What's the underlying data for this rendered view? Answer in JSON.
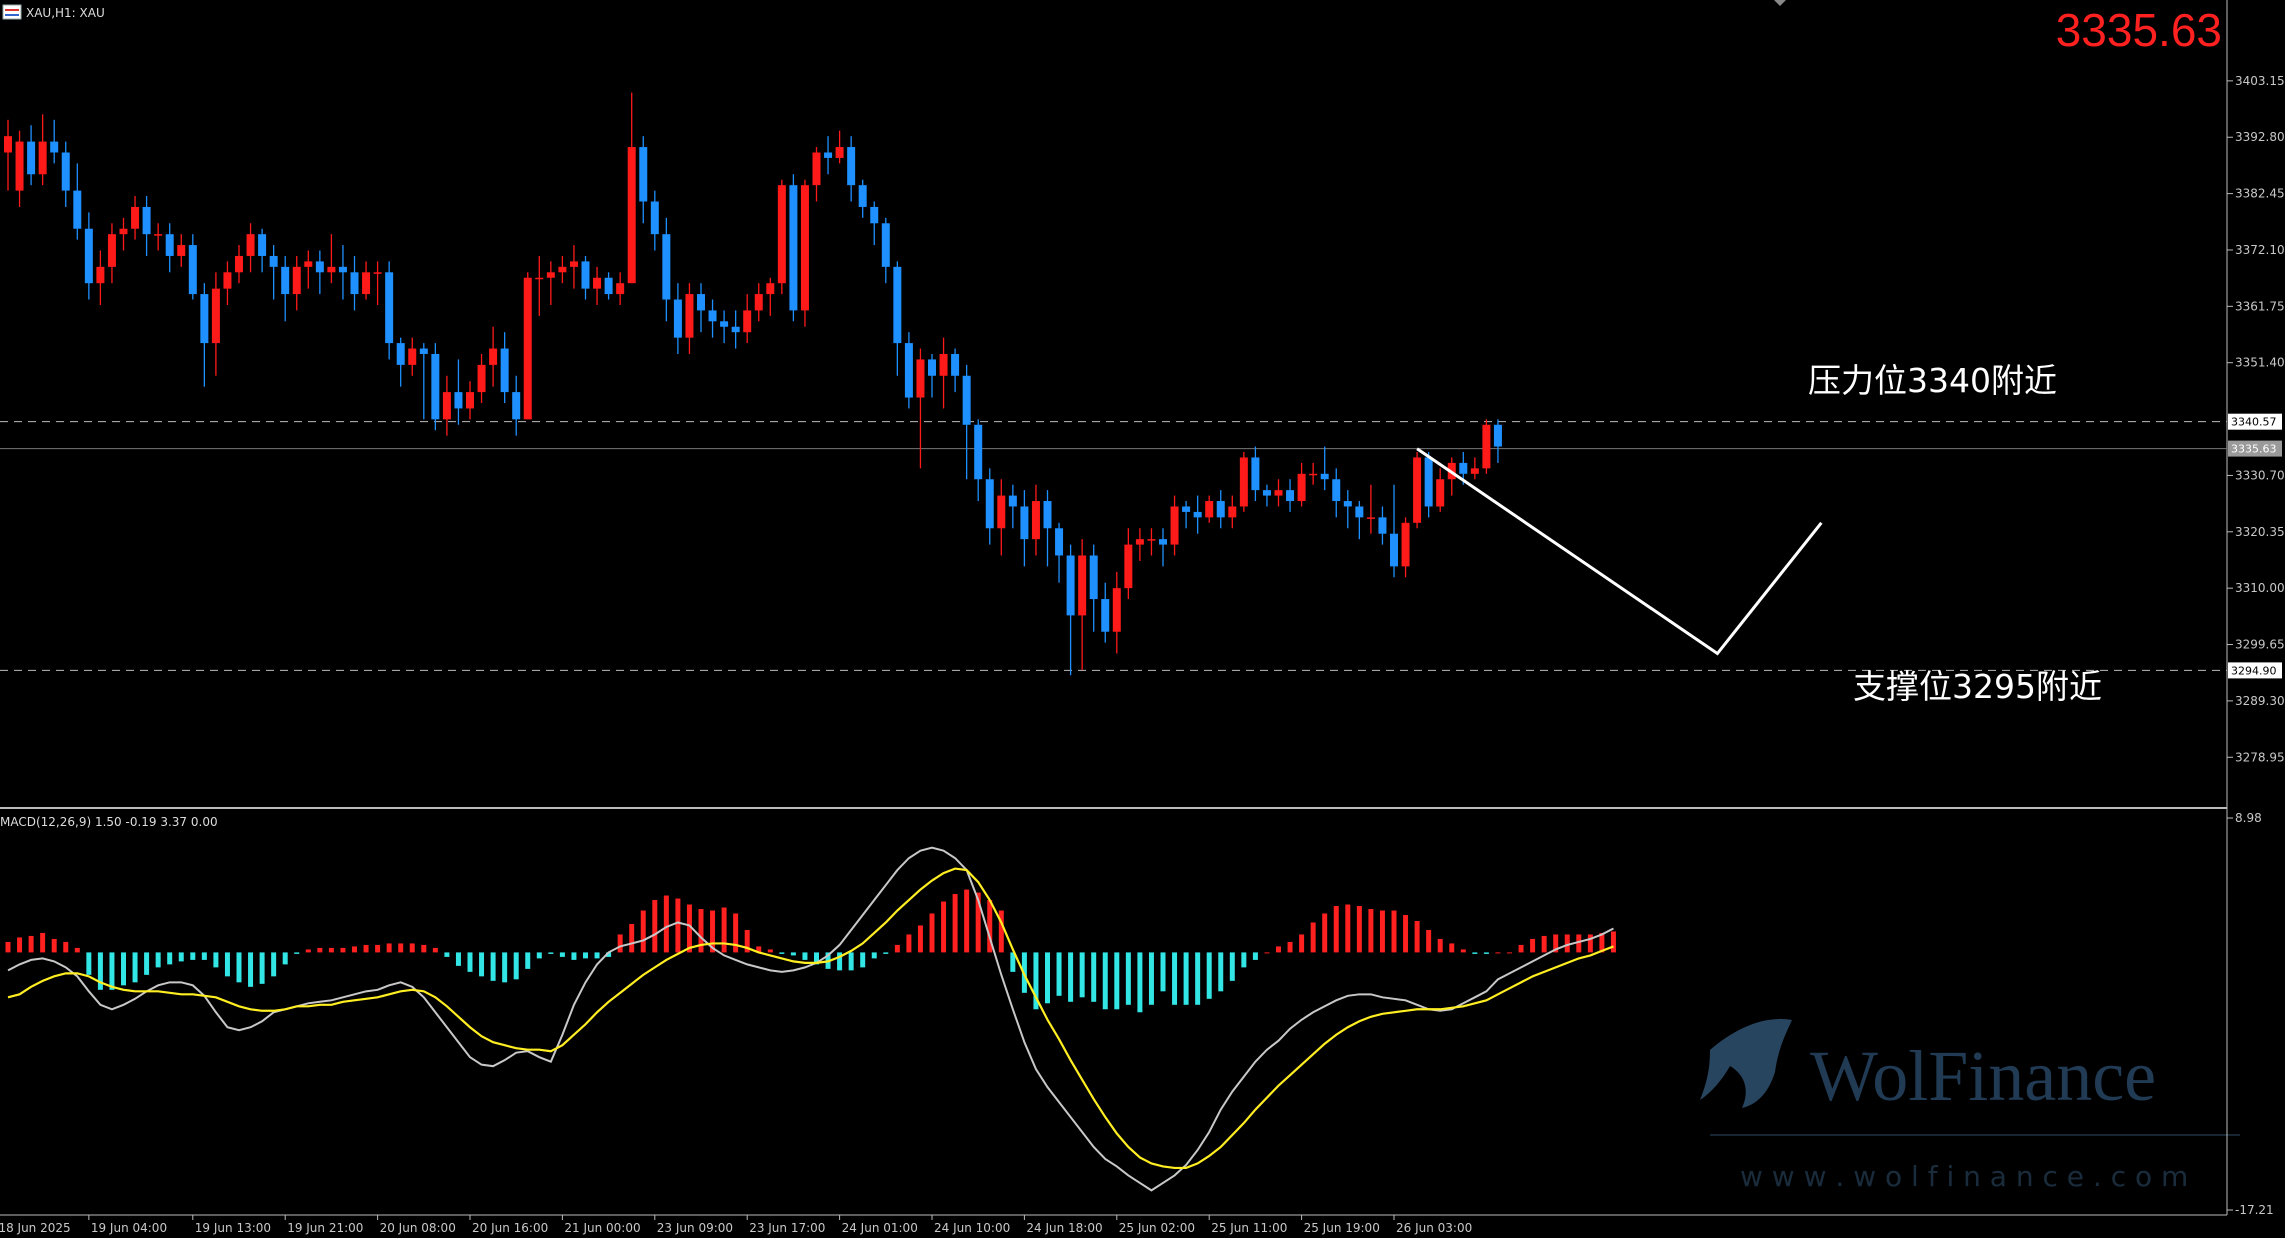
{
  "header": {
    "symbol_label": "XAU,H1: XAU",
    "current_price": "3335.63"
  },
  "colors": {
    "background": "#000000",
    "bull": "#ff1a1a",
    "bear": "#1e90ff",
    "macd_pos": "#ff2020",
    "macd_neg": "#33e6e6",
    "macd_line": "#c8c8c8",
    "signal_line": "#ffee22",
    "price_big": "#ff2020",
    "grid_text": "#c8c8c8"
  },
  "chart_data": {
    "type": "candlestick",
    "ylim": [
      3270.0,
      3418.0
    ],
    "y_ticks": [
      3403.15,
      3392.8,
      3382.45,
      3372.1,
      3361.75,
      3351.4,
      3330.7,
      3320.35,
      3310.0,
      3299.65,
      3289.3,
      3278.95
    ],
    "y_tick_labels": [
      "3403.15",
      "3392.80",
      "3382.45",
      "3372.10",
      "3361.75",
      "3351.40",
      "3330.70",
      "3320.35",
      "3310.00",
      "3299.65",
      "3289.30",
      "3278.95"
    ],
    "x_ticks": [
      {
        "index": -1,
        "label": "18 Jun 2025"
      },
      {
        "index": 7,
        "label": "19 Jun 04:00"
      },
      {
        "index": 16,
        "label": "19 Jun 13:00"
      },
      {
        "index": 24,
        "label": "19 Jun 21:00"
      },
      {
        "index": 32,
        "label": "20 Jun 08:00"
      },
      {
        "index": 40,
        "label": "20 Jun 16:00"
      },
      {
        "index": 48,
        "label": "21 Jun 00:00"
      },
      {
        "index": 56,
        "label": "23 Jun 09:00"
      },
      {
        "index": 64,
        "label": "23 Jun 17:00"
      },
      {
        "index": 72,
        "label": "24 Jun 01:00"
      },
      {
        "index": 80,
        "label": "24 Jun 10:00"
      },
      {
        "index": 88,
        "label": "24 Jun 18:00"
      },
      {
        "index": 96,
        "label": "25 Jun 02:00"
      },
      {
        "index": 104,
        "label": "25 Jun 11:00"
      },
      {
        "index": 112,
        "label": "25 Jun 19:00"
      },
      {
        "index": 120,
        "label": "26 Jun 03:00"
      }
    ],
    "candles": [
      [
        3390,
        3393,
        3383,
        3396
      ],
      [
        3383,
        3392,
        3380,
        3394
      ],
      [
        3392,
        3386,
        3384,
        3395
      ],
      [
        3386,
        3392,
        3384,
        3397
      ],
      [
        3392,
        3390,
        3388,
        3396
      ],
      [
        3390,
        3383,
        3380,
        3392
      ],
      [
        3383,
        3376,
        3374,
        3388
      ],
      [
        3376,
        3366,
        3363,
        3379
      ],
      [
        3366,
        3369,
        3362,
        3372
      ],
      [
        3369,
        3375,
        3366,
        3377
      ],
      [
        3375,
        3376,
        3372,
        3378
      ],
      [
        3376,
        3380,
        3374,
        3382
      ],
      [
        3380,
        3375,
        3371,
        3382
      ],
      [
        3375,
        3375,
        3372,
        3377
      ],
      [
        3375,
        3371,
        3368,
        3377
      ],
      [
        3371,
        3373,
        3369,
        3375
      ],
      [
        3373,
        3364,
        3363,
        3375
      ],
      [
        3364,
        3355,
        3347,
        3366
      ],
      [
        3355,
        3365,
        3349,
        3368
      ],
      [
        3365,
        3368,
        3362,
        3370
      ],
      [
        3368,
        3371,
        3366,
        3373
      ],
      [
        3371,
        3375,
        3368,
        3377
      ],
      [
        3375,
        3371,
        3368,
        3376
      ],
      [
        3371,
        3369,
        3363,
        3373
      ],
      [
        3369,
        3364,
        3359,
        3371
      ],
      [
        3364,
        3369,
        3361,
        3371
      ],
      [
        3369,
        3370,
        3365,
        3372
      ],
      [
        3370,
        3368,
        3364,
        3372
      ],
      [
        3368,
        3369,
        3366,
        3375
      ],
      [
        3369,
        3368,
        3363,
        3373
      ],
      [
        3368,
        3364,
        3361,
        3371
      ],
      [
        3364,
        3368,
        3363,
        3370
      ],
      [
        3368,
        3368,
        3362,
        3370
      ],
      [
        3368,
        3355,
        3352,
        3370
      ],
      [
        3355,
        3351,
        3347,
        3356
      ],
      [
        3351,
        3354,
        3349,
        3356
      ],
      [
        3354,
        3353,
        3341,
        3355
      ],
      [
        3353,
        3341,
        3339,
        3355
      ],
      [
        3341,
        3346,
        3338,
        3349
      ],
      [
        3346,
        3343,
        3340,
        3352
      ],
      [
        3343,
        3346,
        3341,
        3348
      ],
      [
        3346,
        3351,
        3344,
        3353
      ],
      [
        3351,
        3354,
        3347,
        3358
      ],
      [
        3354,
        3346,
        3344,
        3357
      ],
      [
        3346,
        3341,
        3338,
        3349
      ],
      [
        3341,
        3367,
        3341,
        3368
      ],
      [
        3367,
        3367,
        3360,
        3371
      ],
      [
        3367,
        3368,
        3362,
        3370
      ],
      [
        3368,
        3369,
        3366,
        3371
      ],
      [
        3369,
        3370,
        3365,
        3373
      ],
      [
        3370,
        3365,
        3363,
        3371
      ],
      [
        3365,
        3367,
        3362,
        3369
      ],
      [
        3367,
        3364,
        3363,
        3368
      ],
      [
        3364,
        3366,
        3362,
        3368
      ],
      [
        3366,
        3391,
        3366,
        3401
      ],
      [
        3391,
        3381,
        3377,
        3393
      ],
      [
        3381,
        3375,
        3372,
        3383
      ],
      [
        3375,
        3363,
        3359,
        3378
      ],
      [
        3363,
        3356,
        3353,
        3366
      ],
      [
        3356,
        3364,
        3353,
        3366
      ],
      [
        3364,
        3361,
        3357,
        3366
      ],
      [
        3361,
        3359,
        3356,
        3363
      ],
      [
        3359,
        3358,
        3355,
        3361
      ],
      [
        3358,
        3357,
        3354,
        3361
      ],
      [
        3357,
        3361,
        3355,
        3364
      ],
      [
        3361,
        3364,
        3359,
        3366
      ],
      [
        3364,
        3366,
        3360,
        3367
      ],
      [
        3366,
        3384,
        3364,
        3385
      ],
      [
        3384,
        3361,
        3359,
        3386
      ],
      [
        3361,
        3384,
        3358,
        3385
      ],
      [
        3384,
        3390,
        3381,
        3391
      ],
      [
        3390,
        3389,
        3386,
        3393
      ],
      [
        3389,
        3391,
        3388,
        3394
      ],
      [
        3391,
        3384,
        3381,
        3393
      ],
      [
        3384,
        3380,
        3378,
        3385
      ],
      [
        3380,
        3377,
        3373,
        3381
      ],
      [
        3377,
        3369,
        3366,
        3378
      ],
      [
        3369,
        3355,
        3349,
        3370
      ],
      [
        3355,
        3345,
        3343,
        3357
      ],
      [
        3345,
        3352,
        3332,
        3354
      ],
      [
        3352,
        3349,
        3345,
        3353
      ],
      [
        3349,
        3353,
        3343,
        3356
      ],
      [
        3353,
        3349,
        3346,
        3354
      ],
      [
        3349,
        3340,
        3330,
        3351
      ],
      [
        3340,
        3330,
        3326,
        3341
      ],
      [
        3330,
        3321,
        3318,
        3332
      ],
      [
        3321,
        3327,
        3316,
        3330
      ],
      [
        3327,
        3325,
        3321,
        3329
      ],
      [
        3325,
        3319,
        3314,
        3328
      ],
      [
        3319,
        3326,
        3316,
        3329
      ],
      [
        3326,
        3321,
        3314,
        3328
      ],
      [
        3321,
        3316,
        3311,
        3322
      ],
      [
        3316,
        3305,
        3294,
        3318
      ],
      [
        3305,
        3316,
        3295,
        3319
      ],
      [
        3316,
        3308,
        3302,
        3318
      ],
      [
        3308,
        3302,
        3300,
        3311
      ],
      [
        3302,
        3310,
        3298,
        3313
      ],
      [
        3310,
        3318,
        3308,
        3321
      ],
      [
        3318,
        3319,
        3315,
        3321
      ],
      [
        3319,
        3319,
        3316,
        3321
      ],
      [
        3319,
        3318,
        3314,
        3321
      ],
      [
        3318,
        3325,
        3316,
        3327
      ],
      [
        3325,
        3324,
        3321,
        3326
      ],
      [
        3324,
        3323,
        3320,
        3327
      ],
      [
        3323,
        3326,
        3322,
        3327
      ],
      [
        3326,
        3323,
        3321,
        3328
      ],
      [
        3323,
        3325,
        3321,
        3327
      ],
      [
        3325,
        3334,
        3324,
        3335
      ],
      [
        3334,
        3328,
        3326,
        3336
      ],
      [
        3328,
        3327,
        3325,
        3329
      ],
      [
        3327,
        3328,
        3325,
        3330
      ],
      [
        3328,
        3326,
        3324,
        3330
      ],
      [
        3326,
        3331,
        3325,
        3333
      ],
      [
        3331,
        3331,
        3329,
        3333
      ],
      [
        3331,
        3330,
        3328,
        3336
      ],
      [
        3330,
        3326,
        3323,
        3332
      ],
      [
        3326,
        3325,
        3321,
        3328
      ],
      [
        3325,
        3323,
        3319,
        3326
      ],
      [
        3323,
        3323,
        3320,
        3329
      ],
      [
        3323,
        3320,
        3318,
        3325
      ],
      [
        3320,
        3314,
        3312,
        3329
      ],
      [
        3314,
        3322,
        3312,
        3323
      ],
      [
        3322,
        3334,
        3321,
        3335
      ],
      [
        3334,
        3325,
        3323,
        3335
      ],
      [
        3325,
        3330,
        3324,
        3332
      ],
      [
        3330,
        3333,
        3327,
        3334
      ],
      [
        3333,
        3331,
        3329,
        3335
      ],
      [
        3331,
        3332,
        3330,
        3334
      ],
      [
        3332,
        3340,
        3331,
        3341
      ],
      [
        3340,
        3336,
        3333,
        3341
      ]
    ],
    "levels": [
      {
        "price": 3340.57,
        "label": "3340.57",
        "style": "dashed"
      },
      {
        "price": 3335.63,
        "label": "3335.63",
        "style": "solid"
      },
      {
        "price": 3294.9,
        "label": "3294.90",
        "style": "dashed"
      }
    ],
    "annotations": {
      "resistance": "压力位3340附近",
      "support": "支撑位3295附近"
    },
    "projection": [
      {
        "index": 122,
        "price": 3335.6
      },
      {
        "index": 148,
        "price": 3298.0
      },
      {
        "index": 157,
        "price": 3322.0
      }
    ],
    "macd": {
      "label": "MACD(12,26,9) 1.50 -0.19 3.37 0.00",
      "ylim": [
        -17.21,
        8.98
      ],
      "y_tick_labels": [
        "8.98",
        "-17.21"
      ],
      "hist": [
        0.7,
        1.0,
        1.1,
        1.3,
        0.9,
        0.7,
        0.3,
        -1.5,
        -2.5,
        -2.5,
        -2.2,
        -2.0,
        -1.5,
        -1.0,
        -0.8,
        -0.6,
        -0.5,
        -0.5,
        -1.0,
        -1.6,
        -2.0,
        -2.3,
        -2.1,
        -1.6,
        -0.8,
        -0.1,
        0.2,
        0.3,
        0.3,
        0.3,
        0.4,
        0.5,
        0.5,
        0.6,
        0.6,
        0.6,
        0.5,
        0.3,
        -0.3,
        -0.9,
        -1.3,
        -1.6,
        -1.9,
        -2.0,
        -1.8,
        -1.1,
        -0.4,
        -0.1,
        -0.3,
        -0.5,
        -0.4,
        -0.4,
        -0.3,
        1.2,
        1.9,
        2.8,
        3.5,
        3.8,
        3.6,
        3.2,
        2.9,
        2.8,
        3.0,
        2.6,
        1.5,
        0.4,
        0.2,
        -0.1,
        -0.2,
        -0.5,
        -0.8,
        -1.1,
        -1.2,
        -1.2,
        -1.0,
        -0.4,
        -0.1,
        0.5,
        1.2,
        1.8,
        2.6,
        3.4,
        3.9,
        4.2,
        4.0,
        3.5,
        2.8,
        -1.3,
        -2.7,
        -3.8,
        -3.4,
        -2.9,
        -3.3,
        -3.0,
        -3.3,
        -3.8,
        -3.8,
        -3.5,
        -4.0,
        -3.5,
        -2.6,
        -3.5,
        -3.5,
        -3.5,
        -3.1,
        -2.6,
        -1.9,
        -1.0,
        -0.5,
        0.0,
        0.4,
        0.7,
        1.2,
        2.0,
        2.6,
        3.1,
        3.2,
        3.1,
        2.9,
        2.8,
        2.8,
        2.5,
        2.1,
        1.5,
        0.9,
        0.6,
        0.2,
        -0.1,
        -0.1,
        0.0,
        0.0,
        0.5,
        0.9,
        1.1,
        1.2,
        1.2,
        1.2,
        1.2,
        1.3,
        1.4
      ],
      "macd_line": [
        -1.2,
        -0.8,
        -0.5,
        -0.4,
        -0.6,
        -1.0,
        -1.6,
        -2.6,
        -3.5,
        -3.8,
        -3.5,
        -3.1,
        -2.6,
        -2.2,
        -2.0,
        -2.0,
        -2.2,
        -2.9,
        -4.0,
        -5.0,
        -5.2,
        -5.0,
        -4.6,
        -4.0,
        -3.8,
        -3.6,
        -3.4,
        -3.3,
        -3.2,
        -3.0,
        -2.8,
        -2.6,
        -2.5,
        -2.2,
        -2.0,
        -2.3,
        -3.0,
        -4.0,
        -5.0,
        -6.0,
        -7.0,
        -7.5,
        -7.6,
        -7.2,
        -6.7,
        -6.6,
        -7.0,
        -7.3,
        -5.5,
        -3.5,
        -2.0,
        -0.8,
        0.0,
        0.4,
        0.6,
        0.8,
        1.2,
        1.7,
        2.0,
        1.8,
        1.0,
        0.3,
        -0.2,
        -0.5,
        -0.8,
        -1.0,
        -1.2,
        -1.3,
        -1.2,
        -1.0,
        -0.7,
        -0.2,
        0.5,
        1.5,
        2.5,
        3.5,
        4.5,
        5.5,
        6.3,
        6.8,
        7.0,
        6.8,
        6.3,
        5.5,
        3.5,
        1.0,
        -1.5,
        -3.8,
        -6.0,
        -7.8,
        -9.0,
        -10.0,
        -11.0,
        -12.0,
        -13.0,
        -13.8,
        -14.3,
        -14.9,
        -15.4,
        -15.9,
        -15.4,
        -14.9,
        -14.2,
        -13.2,
        -12.0,
        -10.5,
        -9.3,
        -8.3,
        -7.3,
        -6.5,
        -5.9,
        -5.1,
        -4.5,
        -4.0,
        -3.6,
        -3.2,
        -2.9,
        -2.8,
        -2.8,
        -3.0,
        -3.1,
        -3.2,
        -3.5,
        -3.8,
        -3.9,
        -3.8,
        -3.4,
        -3.0,
        -2.6,
        -1.8,
        -1.4,
        -1.0,
        -0.6,
        -0.2,
        0.2,
        0.5,
        0.7,
        0.9,
        1.2,
        1.6
      ],
      "signal_line": [
        -3.0,
        -2.8,
        -2.3,
        -1.9,
        -1.6,
        -1.4,
        -1.4,
        -1.6,
        -2.0,
        -2.3,
        -2.5,
        -2.6,
        -2.6,
        -2.6,
        -2.7,
        -2.8,
        -2.8,
        -2.9,
        -3.0,
        -3.3,
        -3.6,
        -3.8,
        -3.9,
        -3.9,
        -3.8,
        -3.6,
        -3.6,
        -3.5,
        -3.5,
        -3.3,
        -3.2,
        -3.1,
        -3.0,
        -2.8,
        -2.6,
        -2.5,
        -2.6,
        -3.0,
        -3.6,
        -4.3,
        -5.0,
        -5.6,
        -6.0,
        -6.2,
        -6.4,
        -6.5,
        -6.5,
        -6.6,
        -6.2,
        -5.5,
        -4.8,
        -4.0,
        -3.3,
        -2.7,
        -2.1,
        -1.5,
        -1.0,
        -0.5,
        -0.1,
        0.3,
        0.5,
        0.6,
        0.6,
        0.5,
        0.3,
        0.0,
        -0.2,
        -0.4,
        -0.6,
        -0.7,
        -0.7,
        -0.6,
        -0.3,
        0.1,
        0.6,
        1.3,
        2.0,
        2.8,
        3.5,
        4.2,
        4.8,
        5.3,
        5.6,
        5.5,
        4.7,
        3.5,
        2.0,
        0.2,
        -1.5,
        -3.0,
        -4.5,
        -5.8,
        -7.2,
        -8.5,
        -9.8,
        -11.0,
        -12.1,
        -13.0,
        -13.7,
        -14.1,
        -14.3,
        -14.4,
        -14.4,
        -14.1,
        -13.6,
        -13.0,
        -12.2,
        -11.4,
        -10.5,
        -9.7,
        -8.9,
        -8.2,
        -7.5,
        -6.8,
        -6.1,
        -5.5,
        -5.0,
        -4.6,
        -4.3,
        -4.1,
        -4.0,
        -3.9,
        -3.8,
        -3.8,
        -3.8,
        -3.7,
        -3.6,
        -3.4,
        -3.2,
        -2.8,
        -2.4,
        -2.0,
        -1.6,
        -1.3,
        -1.0,
        -0.7,
        -0.4,
        -0.2,
        0.1,
        0.4
      ]
    }
  },
  "watermark": {
    "brand": "WolFinance",
    "url": "w w w . w o l f i n a n c e . c o m"
  }
}
